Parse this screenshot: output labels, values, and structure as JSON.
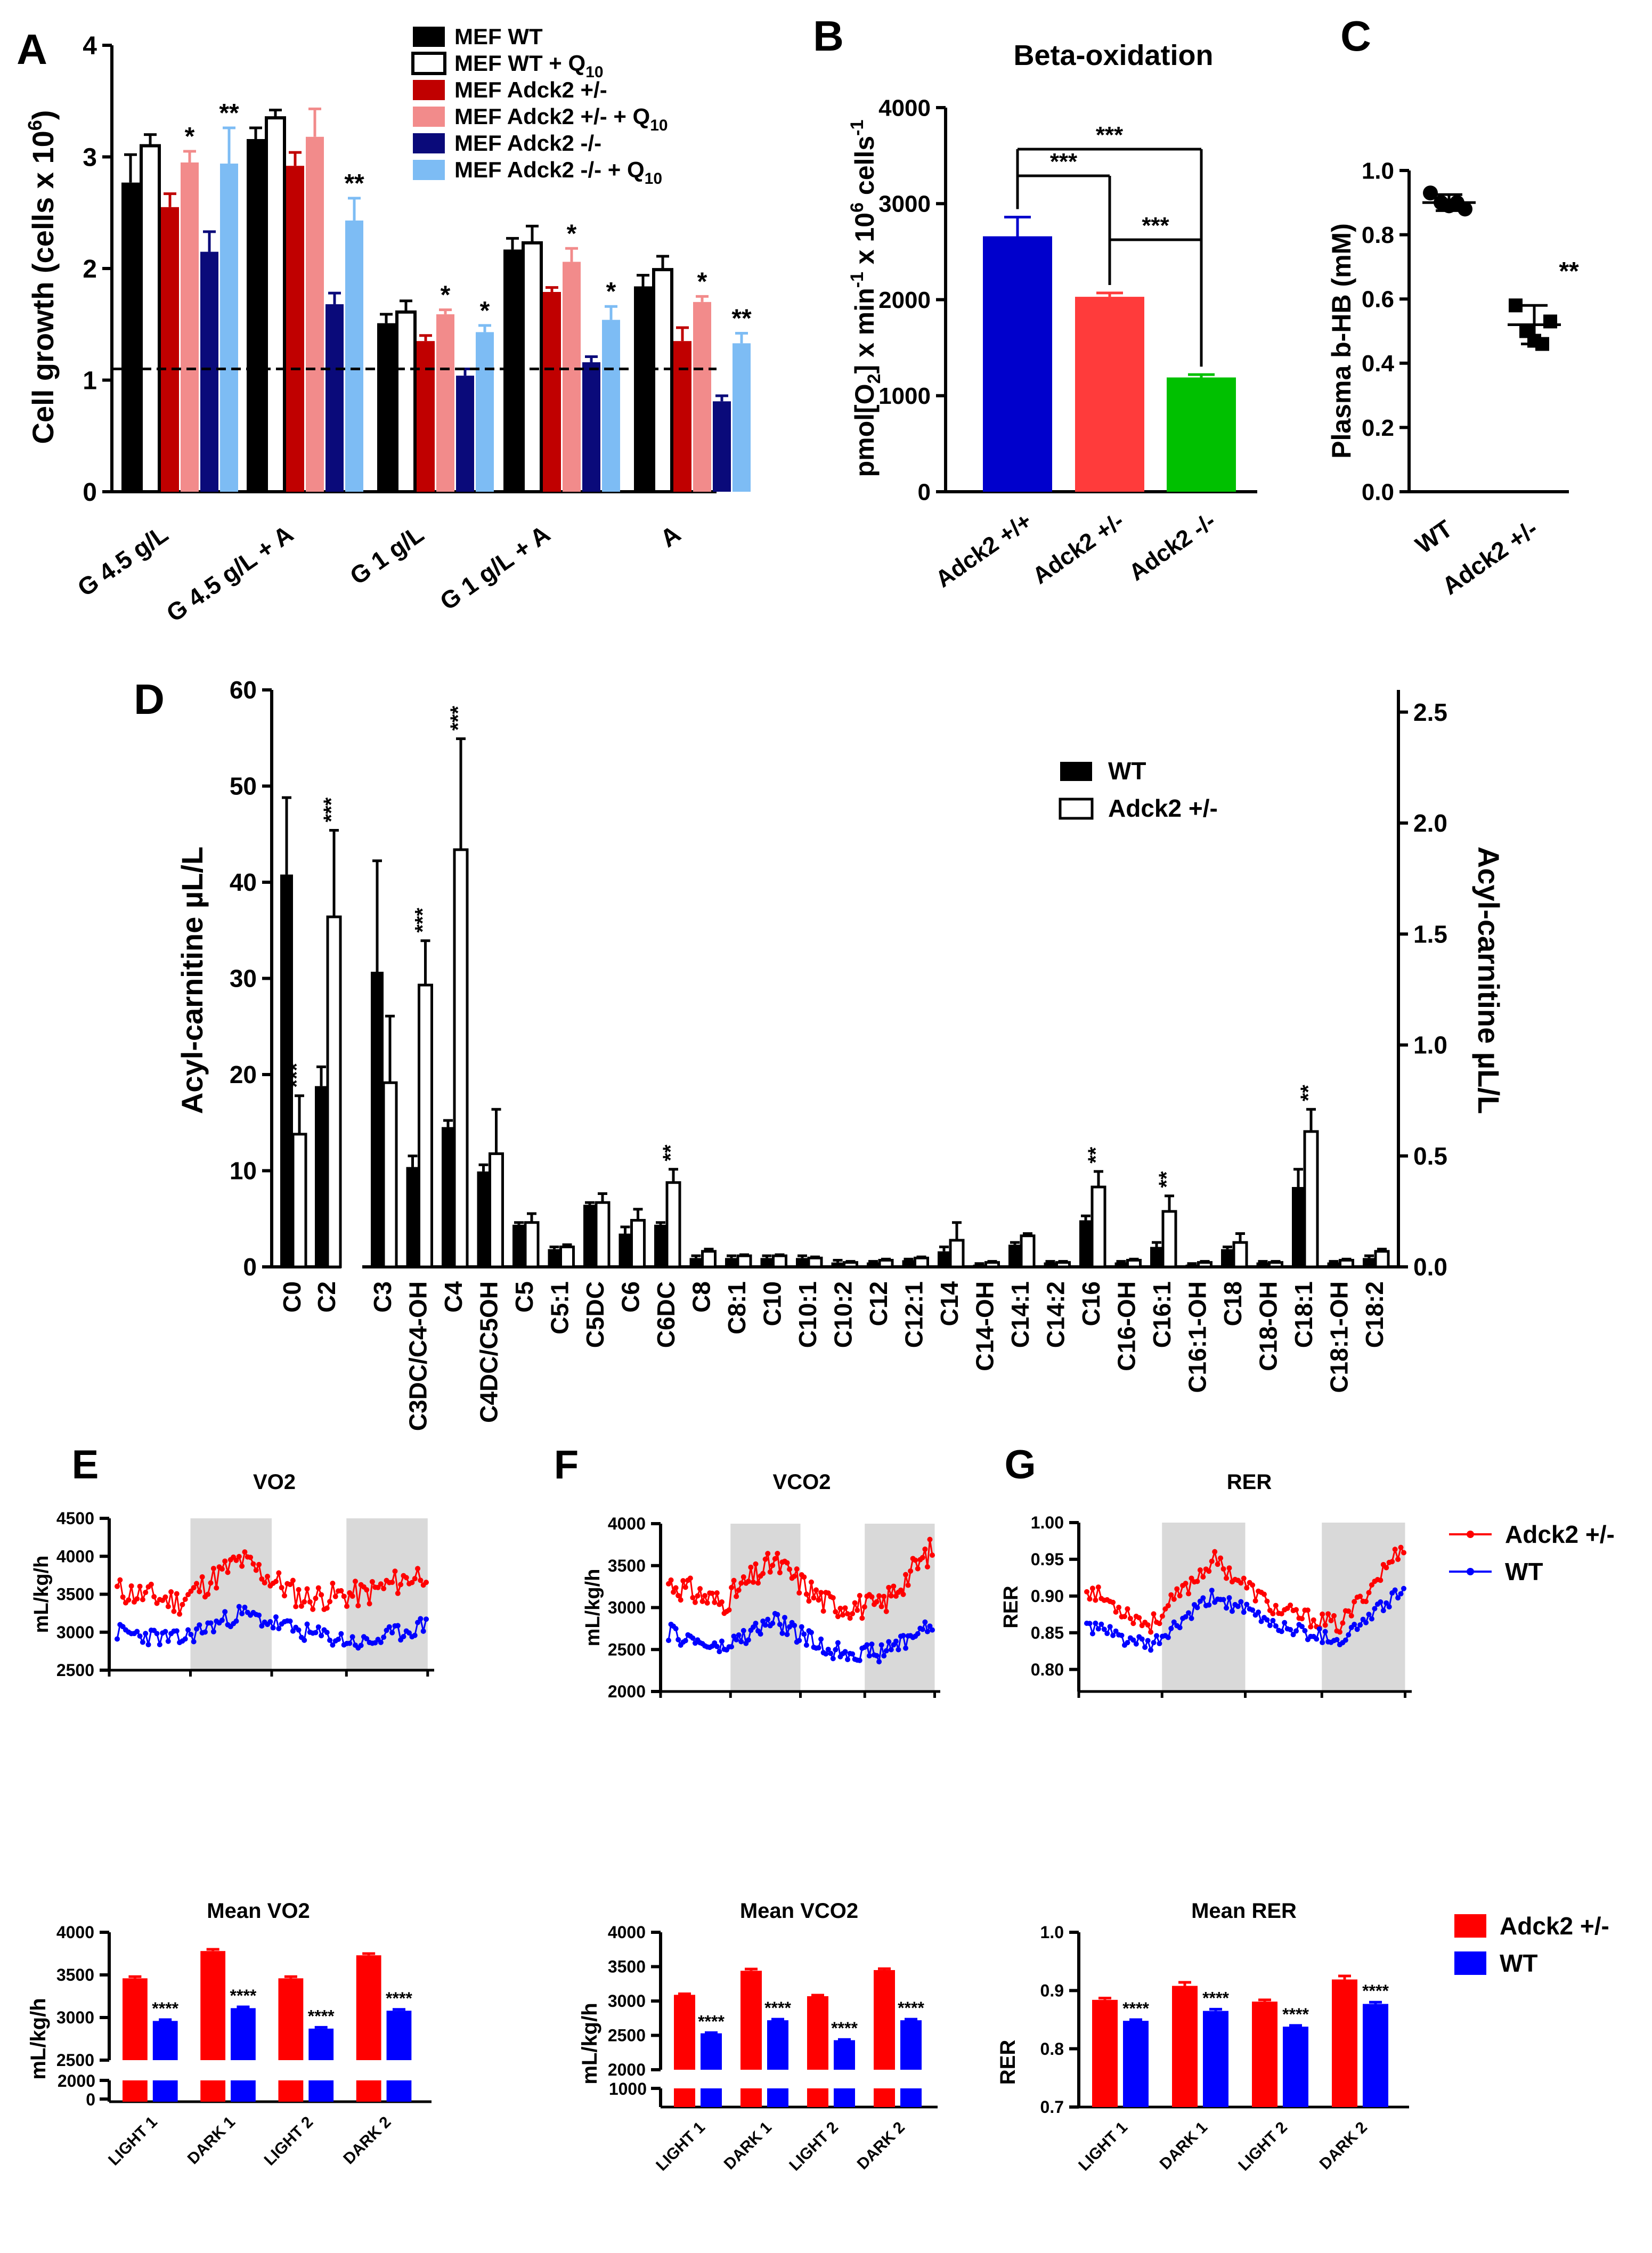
{
  "colors": {
    "black": "#000000",
    "white": "#ffffff",
    "red": "#c00000",
    "pink": "#f28b8b",
    "navy": "#0a0a7a",
    "light_blue": "#7dbcf4",
    "blue": "#0000cc",
    "bright_red": "#ff3b3b",
    "green": "#00c000",
    "e_red": "#ff0000",
    "e_blue": "#0000ff",
    "dark_bg": "#d9d9d9"
  },
  "chart_data": [
    {
      "id": "A",
      "panel_label": "A",
      "type": "bar",
      "ylabel": "Cell growth (cells x 10^6)",
      "ylabel_main": "Cell growth (cells x 10",
      "ylabel_exp": "6",
      "ylabel_end": ")",
      "ylim": [
        0,
        4
      ],
      "yticks": [
        "0",
        "1",
        "2",
        "3",
        "4"
      ],
      "categories": [
        "G 4.5 g/L",
        "G 4.5 g/L + A",
        "G 1 g/L",
        "G 1 g/L + A",
        "A"
      ],
      "reference_line": 1.1,
      "series": [
        {
          "name": "MEF WT",
          "legend_main": "MEF WT",
          "legend_sub": "",
          "color": "#000000",
          "fill": "#000000",
          "values": [
            2.77,
            3.16,
            1.51,
            2.17,
            1.84
          ],
          "errors": [
            0.25,
            0.1,
            0.08,
            0.1,
            0.1
          ],
          "stars": [
            "",
            "",
            "",
            "",
            ""
          ]
        },
        {
          "name": "MEF WT + Q10",
          "legend_main": "MEF WT + Q",
          "legend_sub": "10",
          "color": "#000000",
          "fill": "#ffffff",
          "values": [
            3.1,
            3.35,
            1.61,
            2.23,
            1.99
          ],
          "errors": [
            0.1,
            0.07,
            0.1,
            0.15,
            0.12
          ],
          "stars": [
            "",
            "",
            "",
            "",
            ""
          ]
        },
        {
          "name": "MEF Adck2 +/-",
          "legend_main": "MEF Adck2 +/-",
          "legend_sub": "",
          "color": "#c00000",
          "fill": "#c00000",
          "values": [
            2.55,
            2.92,
            1.35,
            1.79,
            1.35
          ],
          "errors": [
            0.12,
            0.12,
            0.05,
            0.04,
            0.12
          ],
          "stars": [
            "",
            "",
            "",
            "",
            ""
          ]
        },
        {
          "name": "MEF Adck2 +/- + Q10",
          "legend_main": "MEF Adck2 +/- + Q",
          "legend_sub": "10",
          "color": "#f28b8b",
          "fill": "#f28b8b",
          "values": [
            2.95,
            3.18,
            1.59,
            2.06,
            1.7
          ],
          "errors": [
            0.1,
            0.25,
            0.04,
            0.12,
            0.05
          ],
          "stars": [
            "*",
            "",
            "*",
            "*",
            "*"
          ]
        },
        {
          "name": "MEF Adck2 -/-",
          "legend_main": "MEF Adck2 -/-",
          "legend_sub": "",
          "color": "#0a0a7a",
          "fill": "#0a0a7a",
          "values": [
            2.15,
            1.68,
            1.04,
            1.16,
            0.81
          ],
          "errors": [
            0.18,
            0.1,
            0.06,
            0.05,
            0.05
          ],
          "stars": [
            "",
            "",
            "",
            "",
            ""
          ]
        },
        {
          "name": "MEF Adck2 -/- + Q10",
          "legend_main": "MEF Adck2 -/- + Q",
          "legend_sub": "10",
          "color": "#7dbcf4",
          "fill": "#7dbcf4",
          "values": [
            2.94,
            2.43,
            1.43,
            1.54,
            1.33
          ],
          "errors": [
            0.32,
            0.2,
            0.06,
            0.12,
            0.09
          ],
          "stars": [
            "**",
            "**",
            "*",
            "*",
            "**"
          ]
        }
      ]
    },
    {
      "id": "B",
      "panel_label": "B",
      "type": "bar",
      "title": "Beta-oxidation",
      "ylabel": "pmol[O2] x min-1 x 10^6 cells-1",
      "ylim": [
        0,
        4000
      ],
      "yticks": [
        "0",
        "1000",
        "2000",
        "3000",
        "4000"
      ],
      "categories": [
        "Adck2 +/+",
        "Adck2 +/-",
        "Adck2 -/-"
      ],
      "values": [
        2660,
        2030,
        1190
      ],
      "errors": [
        200,
        40,
        30
      ],
      "colors": [
        "#0000cc",
        "#ff3b3b",
        "#00c000"
      ],
      "brackets": [
        {
          "from": 0,
          "to": 2,
          "label": "***"
        },
        {
          "from": 0,
          "to": 1,
          "label": "***"
        },
        {
          "from": 1,
          "to": 2,
          "label": "***"
        }
      ]
    },
    {
      "id": "C",
      "panel_label": "C",
      "type": "scatter",
      "ylabel": "Plasma b-HB (mM)",
      "ylim": [
        0,
        1.0
      ],
      "yticks": [
        "0.0",
        "0.2",
        "0.4",
        "0.6",
        "0.8",
        "1.0"
      ],
      "categories": [
        "WT",
        "Adck2 +/-"
      ],
      "points": [
        [
          0.93,
          0.9,
          0.89,
          0.9,
          0.88
        ],
        [
          0.58,
          0.5,
          0.47,
          0.46,
          0.53
        ]
      ],
      "means": [
        0.9,
        0.52
      ],
      "sd": [
        0.025,
        0.06
      ],
      "annotation": "**"
    },
    {
      "id": "D",
      "panel_label": "D",
      "type": "bar",
      "ylabel": "Acyl-carnitine µL/L",
      "ylabel_right": "Acyl-carnitine µL/L",
      "ylim_left": [
        0,
        60
      ],
      "yticks_left": [
        "0",
        "10",
        "20",
        "30",
        "40",
        "50",
        "60"
      ],
      "ylim_right": [
        0,
        2.6
      ],
      "yticks_right": [
        "0.0",
        "0.5",
        "1.0",
        "1.5",
        "2.0",
        "2.5"
      ],
      "legend": [
        "WT",
        "Adck2 +/-"
      ],
      "left_categories": [
        "C0",
        "C2"
      ],
      "left_wt": [
        40.8,
        18.8
      ],
      "left_wt_err": [
        8,
        2
      ],
      "left_ko": [
        13.8,
        36.4
      ],
      "left_ko_err": [
        4,
        9
      ],
      "left_stars": [
        "***",
        "***"
      ],
      "categories": [
        "C3",
        "C3DC/C4-OH",
        "C4",
        "C4DC/C5OH",
        "C5",
        "C5:1",
        "C5DC",
        "C6",
        "C6DC",
        "C8",
        "C8:1",
        "C10",
        "C10:1",
        "C10:2",
        "C12",
        "C12:1",
        "C14",
        "C14-OH",
        "C14:1",
        "C14:2",
        "C16",
        "C16-OH",
        "C16:1",
        "C16:1-OH",
        "C18",
        "C18-OH",
        "C18:1",
        "C18:1-OH",
        "C18:2"
      ],
      "wt": [
        1.33,
        0.45,
        0.63,
        0.43,
        0.19,
        0.08,
        0.28,
        0.15,
        0.19,
        0.04,
        0.04,
        0.04,
        0.04,
        0.02,
        0.02,
        0.03,
        0.07,
        0.01,
        0.1,
        0.02,
        0.21,
        0.02,
        0.09,
        0.01,
        0.08,
        0.02,
        0.36,
        0.02,
        0.04
      ],
      "wt_err": [
        0.5,
        0.05,
        0.03,
        0.03,
        0.01,
        0.01,
        0.01,
        0.03,
        0.01,
        0.01,
        0.01,
        0.01,
        0.01,
        0.01,
        0.005,
        0.005,
        0.02,
        0.005,
        0.01,
        0.005,
        0.02,
        0.005,
        0.02,
        0.005,
        0.01,
        0.005,
        0.08,
        0.005,
        0.01
      ],
      "ko": [
        0.83,
        1.27,
        1.88,
        0.51,
        0.2,
        0.09,
        0.29,
        0.21,
        0.38,
        0.07,
        0.05,
        0.05,
        0.04,
        0.02,
        0.03,
        0.04,
        0.12,
        0.02,
        0.14,
        0.02,
        0.36,
        0.03,
        0.25,
        0.02,
        0.11,
        0.02,
        0.61,
        0.03,
        0.07
      ],
      "ko_err": [
        0.3,
        0.2,
        0.5,
        0.2,
        0.04,
        0.01,
        0.04,
        0.05,
        0.06,
        0.01,
        0.005,
        0.005,
        0.005,
        0.005,
        0.005,
        0.005,
        0.08,
        0.005,
        0.01,
        0.005,
        0.07,
        0.005,
        0.07,
        0.005,
        0.04,
        0.005,
        0.1,
        0.005,
        0.01
      ],
      "stars": [
        "",
        "***",
        "***",
        "",
        "",
        "",
        "",
        "",
        "**",
        "",
        "",
        "",
        "",
        "",
        "",
        "",
        "",
        "",
        "",
        "",
        "**",
        "",
        "**",
        "",
        "",
        "",
        "**",
        "",
        ""
      ]
    },
    {
      "id": "E",
      "panel_label": "E",
      "type": "line",
      "title": "VO2",
      "ylabel": "mL/kg/h",
      "ylim": [
        2500,
        4500
      ],
      "yticks": [
        "2500",
        "3000",
        "3500",
        "4000",
        "4500"
      ],
      "dark_periods": [
        [
          0.25,
          0.5
        ],
        [
          0.73,
          0.98
        ]
      ],
      "dark_period_units": "fraction_of_time_axis",
      "n_points": 110,
      "series": [
        {
          "name": "Adck2 +/-",
          "color": "#ff0000",
          "base": [
            3550,
            3400,
            3950,
            3450,
            3500,
            3800
          ],
          "noise": 180,
          "seed": 11
        },
        {
          "name": "WT",
          "color": "#0000ff",
          "base": [
            3000,
            2900,
            3250,
            3000,
            2850,
            3100
          ],
          "noise": 120,
          "seed": 23
        }
      ]
    },
    {
      "id": "F",
      "panel_label": "F",
      "type": "line",
      "title": "VCO2",
      "ylabel": "mL/kg/h",
      "ylim": [
        2000,
        4000
      ],
      "yticks": [
        "2000",
        "2500",
        "3000",
        "3500",
        "4000"
      ],
      "dark_periods": [
        [
          0.25,
          0.5
        ],
        [
          0.73,
          0.98
        ]
      ],
      "dark_period_units": "fraction_of_time_axis",
      "n_points": 110,
      "series": [
        {
          "name": "Adck2 +/-",
          "color": "#ff0000",
          "base": [
            3300,
            3050,
            3550,
            3050,
            3000,
            3700
          ],
          "noise": 160,
          "seed": 31
        },
        {
          "name": "WT",
          "color": "#0000ff",
          "base": [
            2700,
            2500,
            2850,
            2500,
            2450,
            2800
          ],
          "noise": 110,
          "seed": 47
        }
      ]
    },
    {
      "id": "G",
      "panel_label": "G",
      "type": "line",
      "title": "RER",
      "ylabel": "RER",
      "ylim": [
        0.77,
        1.0
      ],
      "yticks": [
        "0.80",
        "0.85",
        "0.90",
        "0.95",
        "1.00"
      ],
      "dark_periods": [
        [
          0.25,
          0.5
        ],
        [
          0.73,
          0.98
        ]
      ],
      "dark_period_units": "fraction_of_time_axis",
      "n_points": 110,
      "legend": [
        "Adck2 +/-",
        "WT"
      ],
      "series": [
        {
          "name": "Adck2 +/-",
          "color": "#ff0000",
          "base": [
            0.91,
            0.86,
            0.95,
            0.88,
            0.86,
            0.97
          ],
          "noise": 0.012,
          "seed": 53
        },
        {
          "name": "WT",
          "color": "#0000ff",
          "base": [
            0.86,
            0.83,
            0.9,
            0.86,
            0.84,
            0.91
          ],
          "noise": 0.01,
          "seed": 61
        }
      ]
    },
    {
      "id": "E2",
      "type": "bar",
      "title": "Mean VO2",
      "ylabel": "mL/kg/h",
      "ylim": [
        2500,
        4000
      ],
      "yticks": [
        "2500",
        "3000",
        "3500",
        "4000"
      ],
      "break_ticks": [
        "2000",
        "0"
      ],
      "categories": [
        "LIGHT 1",
        "DARK 1",
        "LIGHT 2",
        "DARK 2"
      ],
      "series": [
        {
          "name": "Adck2 +/-",
          "color": "#ff0000",
          "values": [
            3460,
            3780,
            3460,
            3730
          ],
          "errors": [
            20,
            20,
            20,
            20
          ]
        },
        {
          "name": "WT",
          "color": "#0000ff",
          "values": [
            2960,
            3110,
            2870,
            3080
          ],
          "errors": [
            15,
            15,
            15,
            15
          ]
        }
      ],
      "stars": [
        "****",
        "****",
        "****",
        "****"
      ]
    },
    {
      "id": "F2",
      "type": "bar",
      "title": "Mean VCO2",
      "ylabel": "mL/kg/h",
      "ylim": [
        2000,
        4000
      ],
      "yticks": [
        "2000",
        "2500",
        "3000",
        "3500",
        "4000"
      ],
      "break_ticks": [
        "1000"
      ],
      "categories": [
        "LIGHT 1",
        "DARK 1",
        "LIGHT 2",
        "DARK 2"
      ],
      "series": [
        {
          "name": "Adck2 +/-",
          "color": "#ff0000",
          "values": [
            3090,
            3440,
            3070,
            3450
          ],
          "errors": [
            15,
            25,
            15,
            20
          ]
        },
        {
          "name": "WT",
          "color": "#0000ff",
          "values": [
            2530,
            2720,
            2430,
            2720
          ],
          "errors": [
            10,
            15,
            10,
            15
          ]
        }
      ],
      "stars": [
        "****",
        "****",
        "****",
        "****"
      ]
    },
    {
      "id": "G2",
      "type": "bar",
      "title": "Mean RER",
      "ylabel": "RER",
      "ylim": [
        0.7,
        1.0
      ],
      "yticks": [
        "0.7",
        "0.8",
        "0.9",
        "1.0"
      ],
      "categories": [
        "LIGHT 1",
        "DARK 1",
        "LIGHT 2",
        "DARK 2"
      ],
      "legend": [
        "Adck2 +/-",
        "WT"
      ],
      "series": [
        {
          "name": "Adck2 +/-",
          "color": "#ff0000",
          "values": [
            0.884,
            0.908,
            0.881,
            0.919
          ],
          "errors": [
            0.003,
            0.006,
            0.003,
            0.006
          ]
        },
        {
          "name": "WT",
          "color": "#0000ff",
          "values": [
            0.848,
            0.865,
            0.838,
            0.877
          ],
          "errors": [
            0.002,
            0.003,
            0.002,
            0.003
          ]
        }
      ],
      "stars": [
        "****",
        "****",
        "****",
        "****"
      ]
    }
  ]
}
